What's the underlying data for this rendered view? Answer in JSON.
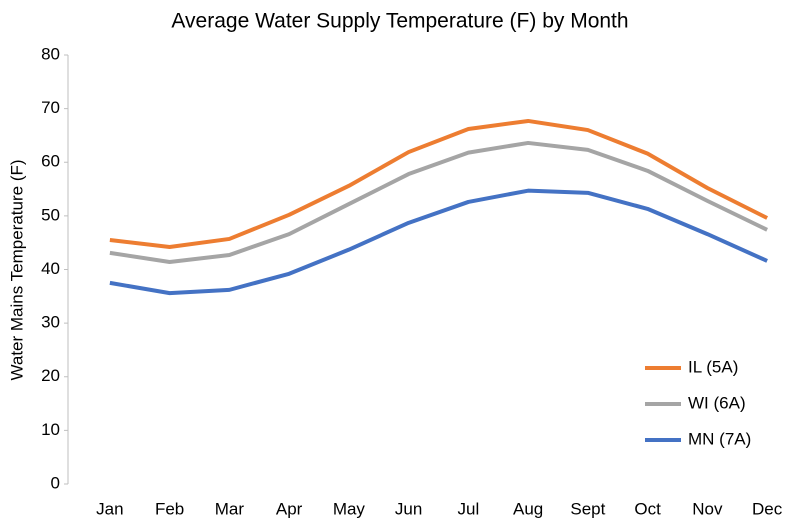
{
  "chart_data": {
    "type": "line",
    "title": "Average Water Supply Temperature (F) by Month",
    "y_label": "Water Mains Temperature (F)",
    "categories": [
      "Jan",
      "Feb",
      "Mar",
      "Apr",
      "May",
      "Jun",
      "Jul",
      "Aug",
      "Sept",
      "Oct",
      "Nov",
      "Dec"
    ],
    "series": [
      {
        "name": "IL (5A)",
        "color": "#ed7d31",
        "values": [
          45.5,
          44.2,
          45.7,
          50.2,
          55.6,
          61.9,
          66.2,
          67.7,
          66.0,
          61.6,
          55.2,
          49.6
        ]
      },
      {
        "name": "WI (6A)",
        "color": "#a5a5a5",
        "values": [
          43.1,
          41.4,
          42.7,
          46.6,
          52.2,
          57.8,
          61.8,
          63.6,
          62.3,
          58.4,
          52.8,
          47.4
        ]
      },
      {
        "name": "MN (7A)",
        "color": "#4472c4",
        "values": [
          37.5,
          35.6,
          36.2,
          39.2,
          43.7,
          48.7,
          52.6,
          54.7,
          54.3,
          51.3,
          46.6,
          41.6
        ]
      }
    ],
    "ylim": [
      0,
      80
    ],
    "yticks": [
      0,
      10,
      20,
      30,
      40,
      50,
      60,
      70,
      80
    ],
    "grid": false,
    "legend": "lower-right"
  }
}
